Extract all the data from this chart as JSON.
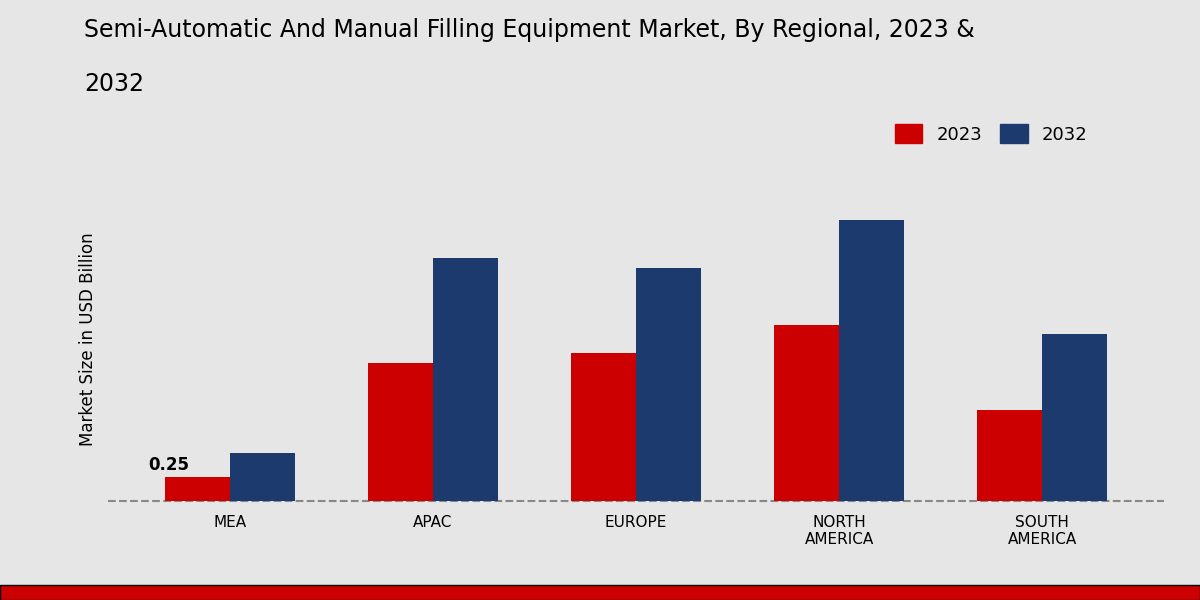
{
  "title_line1": "Semi-Automatic And Manual Filling Equipment Market, By Regional, 2023 &",
  "title_line2": "2032",
  "ylabel": "Market Size in USD Billion",
  "categories": [
    "MEA",
    "APAC",
    "EUROPE",
    "NORTH\nAMERICA",
    "SOUTH\nAMERICA"
  ],
  "values_2023": [
    0.25,
    1.45,
    1.55,
    1.85,
    0.95
  ],
  "values_2032": [
    0.5,
    2.55,
    2.45,
    2.95,
    1.75
  ],
  "color_2023": "#cc0000",
  "color_2032": "#1c3a6e",
  "legend_labels": [
    "2023",
    "2032"
  ],
  "annotation_value": "0.25",
  "annotation_region": 0,
  "bg_color_light": "#e8e8e8",
  "bg_color_dark": "#d0d0d0",
  "bar_width": 0.32,
  "title_fontsize": 17,
  "axis_label_fontsize": 12,
  "tick_fontsize": 11,
  "legend_fontsize": 13,
  "bottom_bar_color": "#cc0000",
  "ylim_max": 3.5
}
